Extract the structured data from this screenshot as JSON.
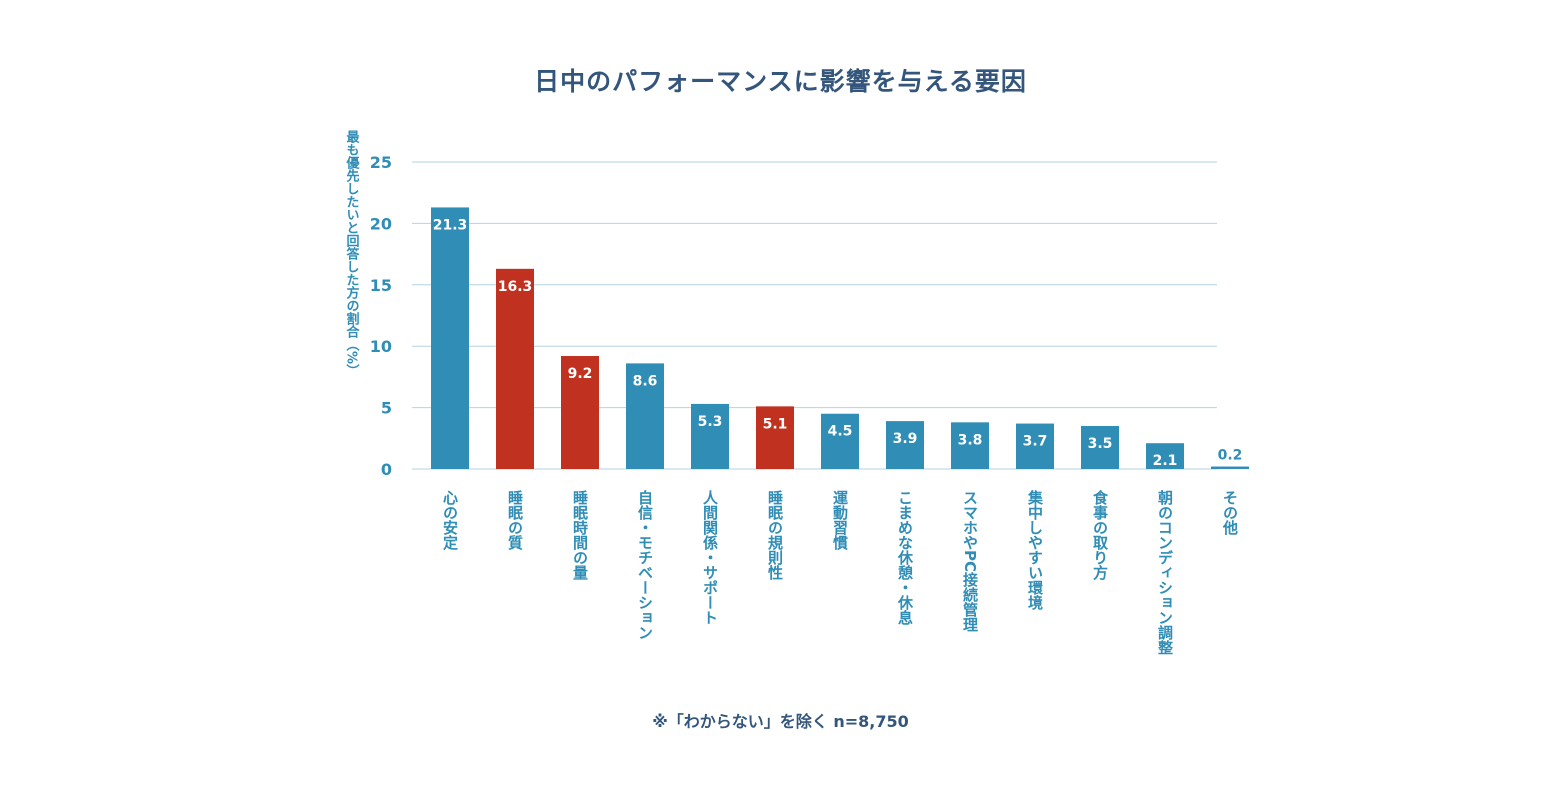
{
  "title": "日中のパフォーマンスに影響を与える要因",
  "note": "※「わからない」を除く n=8,750",
  "colors": {
    "default": "#2f8db6",
    "highlight": "#c0311f",
    "grid": "#b6d3e2",
    "text": "#34567c"
  },
  "chart_data": {
    "type": "bar",
    "title": "日中のパフォーマンスに影響を与える要因",
    "ylabel": "最も優先したいと回答した方の割合（%）",
    "xlabel": "",
    "ylim": [
      0,
      25
    ],
    "yticks": [
      0,
      5,
      10,
      15,
      20,
      25
    ],
    "grid": true,
    "categories": [
      "心の安定",
      "睡眠の質",
      "睡眠時間の量",
      "自信・モチベーション",
      "人間関係・サポート",
      "睡眠の規則性",
      "運動習慣",
      "こまめな休憩・休息",
      "スマホやPC接続管理",
      "集中しやすい環境",
      "食事の取り方",
      "朝のコンディション調整",
      "その他"
    ],
    "values": [
      21.3,
      16.3,
      9.2,
      8.6,
      5.3,
      5.1,
      4.5,
      3.9,
      3.8,
      3.7,
      3.5,
      2.1,
      0.2
    ],
    "value_labels": [
      "21.3",
      "16.3",
      "9.2",
      "8.6",
      "5.3",
      "5.1",
      "4.5",
      "3.9",
      "3.8",
      "3.7",
      "3.5",
      "2.1",
      "0.2"
    ],
    "highlighted": [
      false,
      true,
      true,
      false,
      false,
      true,
      false,
      false,
      false,
      false,
      false,
      false,
      false
    ]
  }
}
